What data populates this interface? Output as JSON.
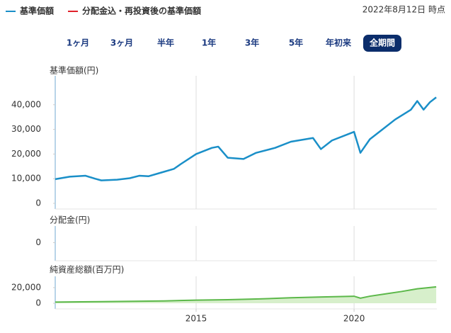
{
  "legend": [
    {
      "label": "基準価額",
      "color": "#1a8fc8"
    },
    {
      "label": "分配金込・再投資後の基準価額",
      "color": "#e0202a"
    }
  ],
  "timestamp": "2022年8月12日 時点",
  "buttons": [
    "1ヶ月",
    "3ヶ月",
    "半年",
    "1年",
    "3年",
    "5年",
    "年初来",
    "全期間"
  ],
  "selected_button": 7,
  "chart_data": [
    {
      "type": "line",
      "title": "基準価額(円)",
      "x": [
        2010.54,
        2011.0,
        2011.5,
        2011.8,
        2012.0,
        2012.5,
        2012.9,
        2013.2,
        2013.5,
        2013.9,
        2014.3,
        2014.5,
        2015.0,
        2015.5,
        2015.7,
        2016.0,
        2016.5,
        2016.9,
        2017.5,
        2018.0,
        2018.7,
        2018.95,
        2019.3,
        2019.8,
        2020.0,
        2020.2,
        2020.5,
        2020.9,
        2021.3,
        2021.8,
        2022.0,
        2022.2,
        2022.4,
        2022.6
      ],
      "series": [
        {
          "color": "#1a8fc8",
          "values": [
            9800,
            10800,
            11200,
            10000,
            9300,
            9600,
            10200,
            11200,
            11000,
            12500,
            14000,
            15800,
            20000,
            22500,
            23000,
            18500,
            18000,
            20500,
            22500,
            25000,
            26500,
            22000,
            25500,
            28000,
            29000,
            20500,
            26000,
            30000,
            34000,
            38000,
            41500,
            38000,
            41000,
            43000
          ]
        }
      ],
      "xlim": [
        2010.54,
        2022.62
      ],
      "ylim": [
        0,
        50000
      ],
      "yticks": [
        0,
        {
          "value": 10000,
          "label": "10,000"
        },
        {
          "value": 20000,
          "label": "20,000"
        },
        {
          "value": 30000,
          "label": "30,000"
        },
        {
          "value": 40000,
          "label": "40,000"
        }
      ]
    },
    {
      "type": "bar",
      "title": "分配金(円)",
      "values": [],
      "ylim": [
        -1,
        1
      ],
      "yticks": [
        0
      ]
    },
    {
      "type": "area",
      "title": "純資産総額(百万円)",
      "x": [
        2010.54,
        2012.0,
        2014.0,
        2015.0,
        2016.0,
        2017.0,
        2018.0,
        2019.0,
        2020.0,
        2020.2,
        2020.5,
        2021.0,
        2021.5,
        2022.0,
        2022.6
      ],
      "series": [
        {
          "color": "#5cb84a",
          "values": [
            1500,
            2000,
            3000,
            4000,
            4500,
            5500,
            7000,
            8000,
            9000,
            6500,
            9000,
            12000,
            15000,
            18500,
            21000
          ]
        }
      ],
      "xlim": [
        2010.54,
        2022.62
      ],
      "ylim": [
        0,
        29000
      ],
      "yticks": [
        0,
        {
          "value": 20000,
          "label": "20,000"
        }
      ],
      "xticks": [
        2015,
        2020
      ]
    }
  ]
}
